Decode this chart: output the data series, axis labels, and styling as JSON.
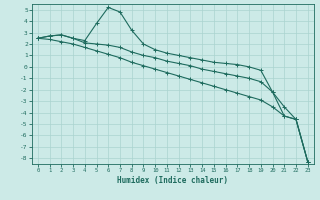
{
  "xlabel": "Humidex (Indice chaleur)",
  "bg_color": "#cceae7",
  "grid_color": "#aad4d0",
  "line_color": "#1e6b5e",
  "xlim": [
    -0.5,
    23.5
  ],
  "ylim": [
    -8.5,
    5.5
  ],
  "xticks": [
    0,
    1,
    2,
    3,
    4,
    5,
    6,
    7,
    8,
    9,
    10,
    11,
    12,
    13,
    14,
    15,
    16,
    17,
    18,
    19,
    20,
    21,
    22,
    23
  ],
  "yticks": [
    5,
    4,
    3,
    2,
    1,
    0,
    -1,
    -2,
    -3,
    -4,
    -5,
    -6,
    -7,
    -8
  ],
  "series1_x": [
    0,
    1,
    2,
    3,
    4,
    5,
    6,
    7,
    8,
    9,
    10,
    11,
    12,
    13,
    14,
    15,
    16,
    17,
    18,
    19,
    20,
    21,
    22,
    23
  ],
  "series1_y": [
    2.5,
    2.7,
    2.8,
    2.5,
    2.3,
    3.8,
    5.2,
    4.8,
    3.2,
    2.0,
    1.5,
    1.2,
    1.0,
    0.8,
    0.6,
    0.4,
    0.3,
    0.2,
    0.0,
    -0.3,
    -2.2,
    -4.3,
    -4.6,
    -8.3
  ],
  "series2_x": [
    0,
    1,
    2,
    3,
    4,
    5,
    6,
    7,
    8,
    9,
    10,
    11,
    12,
    13,
    14,
    15,
    16,
    17,
    18,
    19,
    20,
    21,
    22,
    23
  ],
  "series2_y": [
    2.5,
    2.7,
    2.8,
    2.5,
    2.1,
    2.0,
    1.9,
    1.7,
    1.3,
    1.0,
    0.8,
    0.5,
    0.3,
    0.1,
    -0.2,
    -0.4,
    -0.6,
    -0.8,
    -1.0,
    -1.3,
    -2.2,
    -3.5,
    -4.6,
    -8.3
  ],
  "series3_x": [
    0,
    1,
    2,
    3,
    4,
    5,
    6,
    7,
    8,
    9,
    10,
    11,
    12,
    13,
    14,
    15,
    16,
    17,
    18,
    19,
    20,
    21,
    22,
    23
  ],
  "series3_y": [
    2.5,
    2.4,
    2.2,
    2.0,
    1.7,
    1.4,
    1.1,
    0.8,
    0.4,
    0.1,
    -0.2,
    -0.5,
    -0.8,
    -1.1,
    -1.4,
    -1.7,
    -2.0,
    -2.3,
    -2.6,
    -2.9,
    -3.5,
    -4.3,
    -4.6,
    -8.3
  ]
}
